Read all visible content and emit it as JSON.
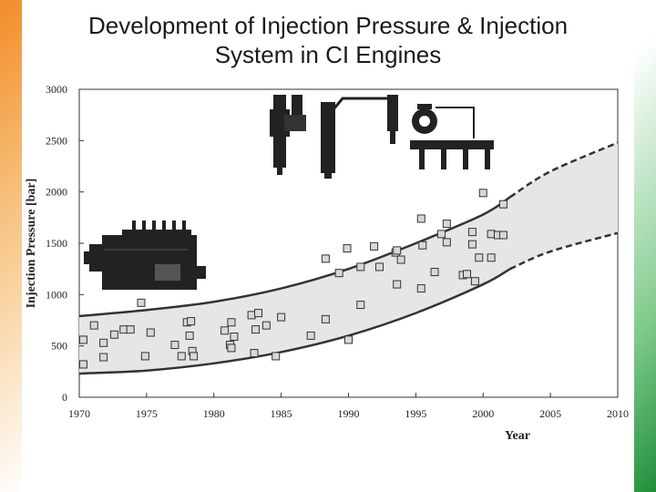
{
  "title_line1": "Development of Injection Pressure & Injection",
  "title_line2": "System in CI Engines",
  "chart_data": {
    "type": "scatter",
    "title": "Development of Injection Pressure & Injection System in CI Engines",
    "xlabel": "Year",
    "ylabel": "Injection Pressure [bar]",
    "xlim": [
      1970,
      2010
    ],
    "ylim": [
      0,
      3000
    ],
    "xticks": [
      "1970",
      "1975",
      "1980",
      "1985",
      "1990",
      "1995",
      "2000",
      "2005",
      "2010"
    ],
    "yticks": [
      "0",
      "500",
      "1000",
      "1500",
      "2000",
      "2500",
      "3000"
    ],
    "band_upper": {
      "x": [
        1970,
        1975,
        1980,
        1985,
        1990,
        1995,
        2000,
        2002,
        2005,
        2010
      ],
      "y": [
        790,
        850,
        930,
        1060,
        1250,
        1500,
        1780,
        1950,
        2200,
        2480
      ]
    },
    "band_lower": {
      "x": [
        1970,
        1975,
        1980,
        1985,
        1990,
        1995,
        2000,
        2002,
        2005,
        2010
      ],
      "y": [
        230,
        260,
        330,
        440,
        600,
        820,
        1100,
        1250,
        1420,
        1600
      ]
    },
    "band_dashed_from": 2002,
    "points": [
      [
        1970.3,
        560
      ],
      [
        1970.3,
        320
      ],
      [
        1971.1,
        700
      ],
      [
        1971.8,
        530
      ],
      [
        1971.8,
        390
      ],
      [
        1972.6,
        610
      ],
      [
        1973.3,
        660
      ],
      [
        1973.8,
        660
      ],
      [
        1974.6,
        920
      ],
      [
        1974.9,
        400
      ],
      [
        1975.3,
        630
      ],
      [
        1977.1,
        510
      ],
      [
        1977.6,
        400
      ],
      [
        1978.0,
        730
      ],
      [
        1978.2,
        600
      ],
      [
        1978.3,
        740
      ],
      [
        1978.4,
        450
      ],
      [
        1978.5,
        400
      ],
      [
        1980.8,
        650
      ],
      [
        1981.2,
        510
      ],
      [
        1981.3,
        730
      ],
      [
        1981.5,
        590
      ],
      [
        1981.3,
        480
      ],
      [
        1982.8,
        800
      ],
      [
        1983.0,
        430
      ],
      [
        1983.1,
        660
      ],
      [
        1983.3,
        820
      ],
      [
        1983.9,
        700
      ],
      [
        1984.6,
        400
      ],
      [
        1985.0,
        780
      ],
      [
        1987.2,
        600
      ],
      [
        1988.3,
        1350
      ],
      [
        1988.3,
        760
      ],
      [
        1989.3,
        1210
      ],
      [
        1989.9,
        1450
      ],
      [
        1990.0,
        560
      ],
      [
        1990.9,
        1270
      ],
      [
        1990.9,
        900
      ],
      [
        1991.9,
        1470
      ],
      [
        1992.3,
        1270
      ],
      [
        1993.5,
        1410
      ],
      [
        1993.6,
        1430
      ],
      [
        1993.6,
        1100
      ],
      [
        1993.9,
        1340
      ],
      [
        1995.4,
        1740
      ],
      [
        1995.5,
        1480
      ],
      [
        1995.4,
        1060
      ],
      [
        1996.4,
        1220
      ],
      [
        1996.9,
        1590
      ],
      [
        1997.3,
        1690
      ],
      [
        1997.3,
        1510
      ],
      [
        1998.5,
        1190
      ],
      [
        1998.8,
        1200
      ],
      [
        1999.2,
        1610
      ],
      [
        1999.2,
        1490
      ],
      [
        1999.4,
        1130
      ],
      [
        1999.7,
        1360
      ],
      [
        2000.0,
        1990
      ],
      [
        2000.6,
        1590
      ],
      [
        2000.6,
        1360
      ],
      [
        2001.1,
        1580
      ],
      [
        2001.5,
        1580
      ],
      [
        2001.5,
        1880
      ]
    ]
  }
}
